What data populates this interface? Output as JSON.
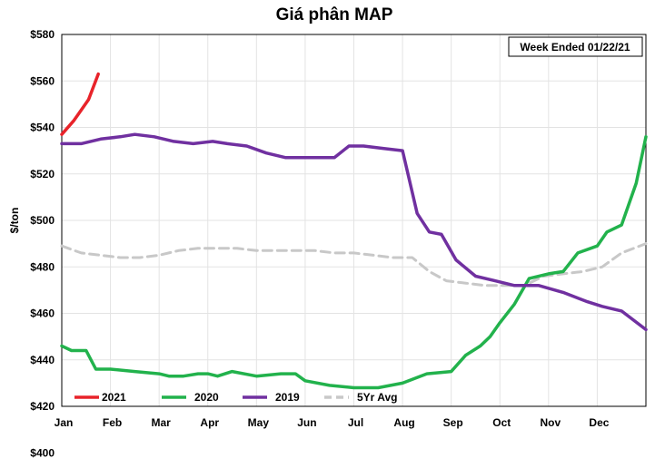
{
  "chart_data": {
    "type": "line",
    "title": "Giá phân MAP",
    "ylabel": "$/ton",
    "xlabel": "",
    "annotation": "Week Ended 01/22/21",
    "ylim": [
      420,
      580
    ],
    "xlim": [
      0,
      12
    ],
    "x_tick_labels": [
      "Jan",
      "Feb",
      "Mar",
      "Apr",
      "May",
      "Jun",
      "Jul",
      "Aug",
      "Sep",
      "Oct",
      "Nov",
      "Dec"
    ],
    "y_tick_labels": [
      "$580",
      "$560",
      "$540",
      "$520",
      "$500",
      "$480",
      "$460",
      "$440",
      "$420",
      "$400"
    ],
    "grid": true,
    "legend_position": "bottom-left",
    "series": [
      {
        "name": "2021",
        "color": "#e8232a",
        "dashed": false,
        "x": [
          0.0,
          0.25,
          0.55,
          0.75
        ],
        "y": [
          537,
          543,
          552,
          563
        ]
      },
      {
        "name": "2020",
        "color": "#22b24c",
        "dashed": false,
        "x": [
          0.0,
          0.2,
          0.5,
          0.7,
          1.0,
          1.5,
          2.0,
          2.2,
          2.5,
          2.8,
          3.0,
          3.2,
          3.5,
          4.0,
          4.5,
          4.8,
          5.0,
          5.5,
          6.0,
          6.5,
          7.0,
          7.5,
          8.0,
          8.3,
          8.6,
          8.8,
          9.0,
          9.3,
          9.6,
          10.0,
          10.3,
          10.6,
          11.0,
          11.2,
          11.5,
          11.8,
          12.0
        ],
        "y": [
          446,
          444,
          444,
          436,
          436,
          435,
          434,
          433,
          433,
          434,
          434,
          433,
          435,
          433,
          434,
          434,
          431,
          429,
          428,
          428,
          430,
          434,
          435,
          442,
          446,
          450,
          456,
          464,
          475,
          477,
          478,
          486,
          489,
          495,
          498,
          516,
          536
        ]
      },
      {
        "name": "2019",
        "color": "#7030a0",
        "dashed": false,
        "x": [
          0.0,
          0.4,
          0.8,
          1.2,
          1.5,
          1.9,
          2.3,
          2.7,
          3.1,
          3.4,
          3.8,
          4.2,
          4.6,
          5.0,
          5.4,
          5.6,
          5.9,
          6.2,
          6.6,
          7.0,
          7.3,
          7.55,
          7.8,
          8.1,
          8.5,
          8.9,
          9.3,
          9.8,
          10.3,
          10.8,
          11.1,
          11.5,
          12.0
        ],
        "y": [
          533,
          533,
          535,
          536,
          537,
          536,
          534,
          533,
          534,
          533,
          532,
          529,
          527,
          527,
          527,
          527,
          532,
          532,
          531,
          530,
          503,
          495,
          494,
          483,
          476,
          474,
          472,
          472,
          469,
          465,
          463,
          461,
          453
        ]
      },
      {
        "name": "5Yr Avg",
        "color": "#c8c8c8",
        "dashed": true,
        "x": [
          0.0,
          0.4,
          0.8,
          1.2,
          1.6,
          2.0,
          2.4,
          2.8,
          3.2,
          3.6,
          4.0,
          4.4,
          4.8,
          5.2,
          5.6,
          6.0,
          6.4,
          6.8,
          7.2,
          7.55,
          7.9,
          8.3,
          8.7,
          9.1,
          9.5,
          9.9,
          10.3,
          10.7,
          11.1,
          11.5,
          12.0
        ],
        "y": [
          489,
          486,
          485,
          484,
          484,
          485,
          487,
          488,
          488,
          488,
          487,
          487,
          487,
          487,
          486,
          486,
          485,
          484,
          484,
          478,
          474,
          473,
          472,
          472,
          472,
          476,
          477,
          478,
          480,
          486,
          490
        ]
      }
    ]
  }
}
